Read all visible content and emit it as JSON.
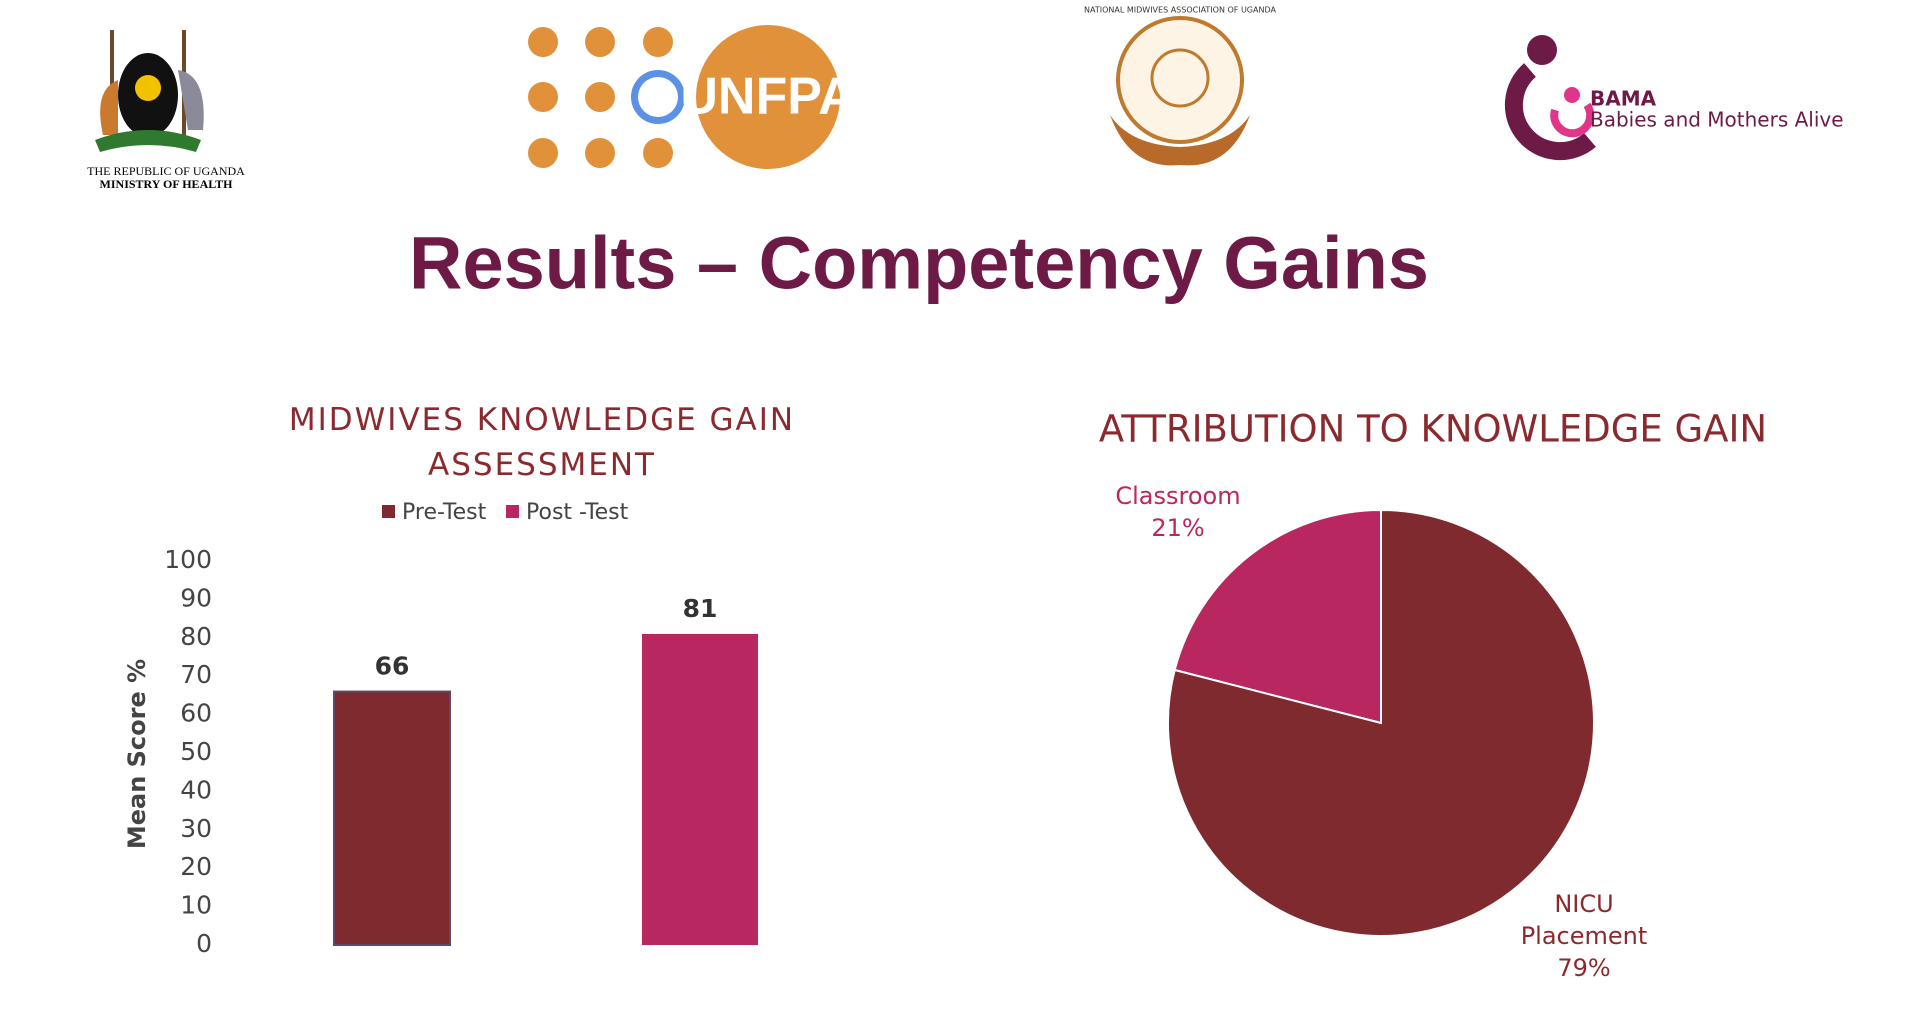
{
  "slide": {
    "title": "Results – Competency Gains"
  },
  "logos": {
    "uganda_line1": "THE REPUBLIC OF UGANDA",
    "uganda_line2": "MINISTRY OF HEALTH",
    "unfpa": "UNFPA",
    "nmau": "NATIONAL MIDWIVES ASSOCIATION OF UGANDA",
    "bama": "BAMA",
    "bama_sub": "Babies and Mothers Alive"
  },
  "chart_data": [
    {
      "type": "bar",
      "title": "MIDWIVES KNOWLEDGE GAIN ASSESSMENT",
      "y_label": "Mean Score %",
      "categories": [
        null
      ],
      "series": [
        {
          "name": "Pre-Test",
          "color": "#7f2a2e",
          "values": [
            66
          ]
        },
        {
          "name": "Post -Test",
          "color": "#b8275f",
          "values": [
            81
          ]
        }
      ],
      "ylim": [
        0,
        100
      ],
      "yticks": [
        0,
        10,
        20,
        30,
        40,
        50,
        60,
        70,
        80,
        90,
        100
      ],
      "grid": false,
      "legend": "top"
    },
    {
      "type": "pie",
      "title": "ATTRIBUTION TO KNOWLEDGE GAIN",
      "categories": [
        "Classroom",
        "NICU Placement"
      ],
      "values": [
        21,
        79
      ],
      "value_labels": [
        "21%",
        "79%"
      ],
      "colors": [
        "#b8275f",
        "#7f2a2e"
      ]
    }
  ]
}
